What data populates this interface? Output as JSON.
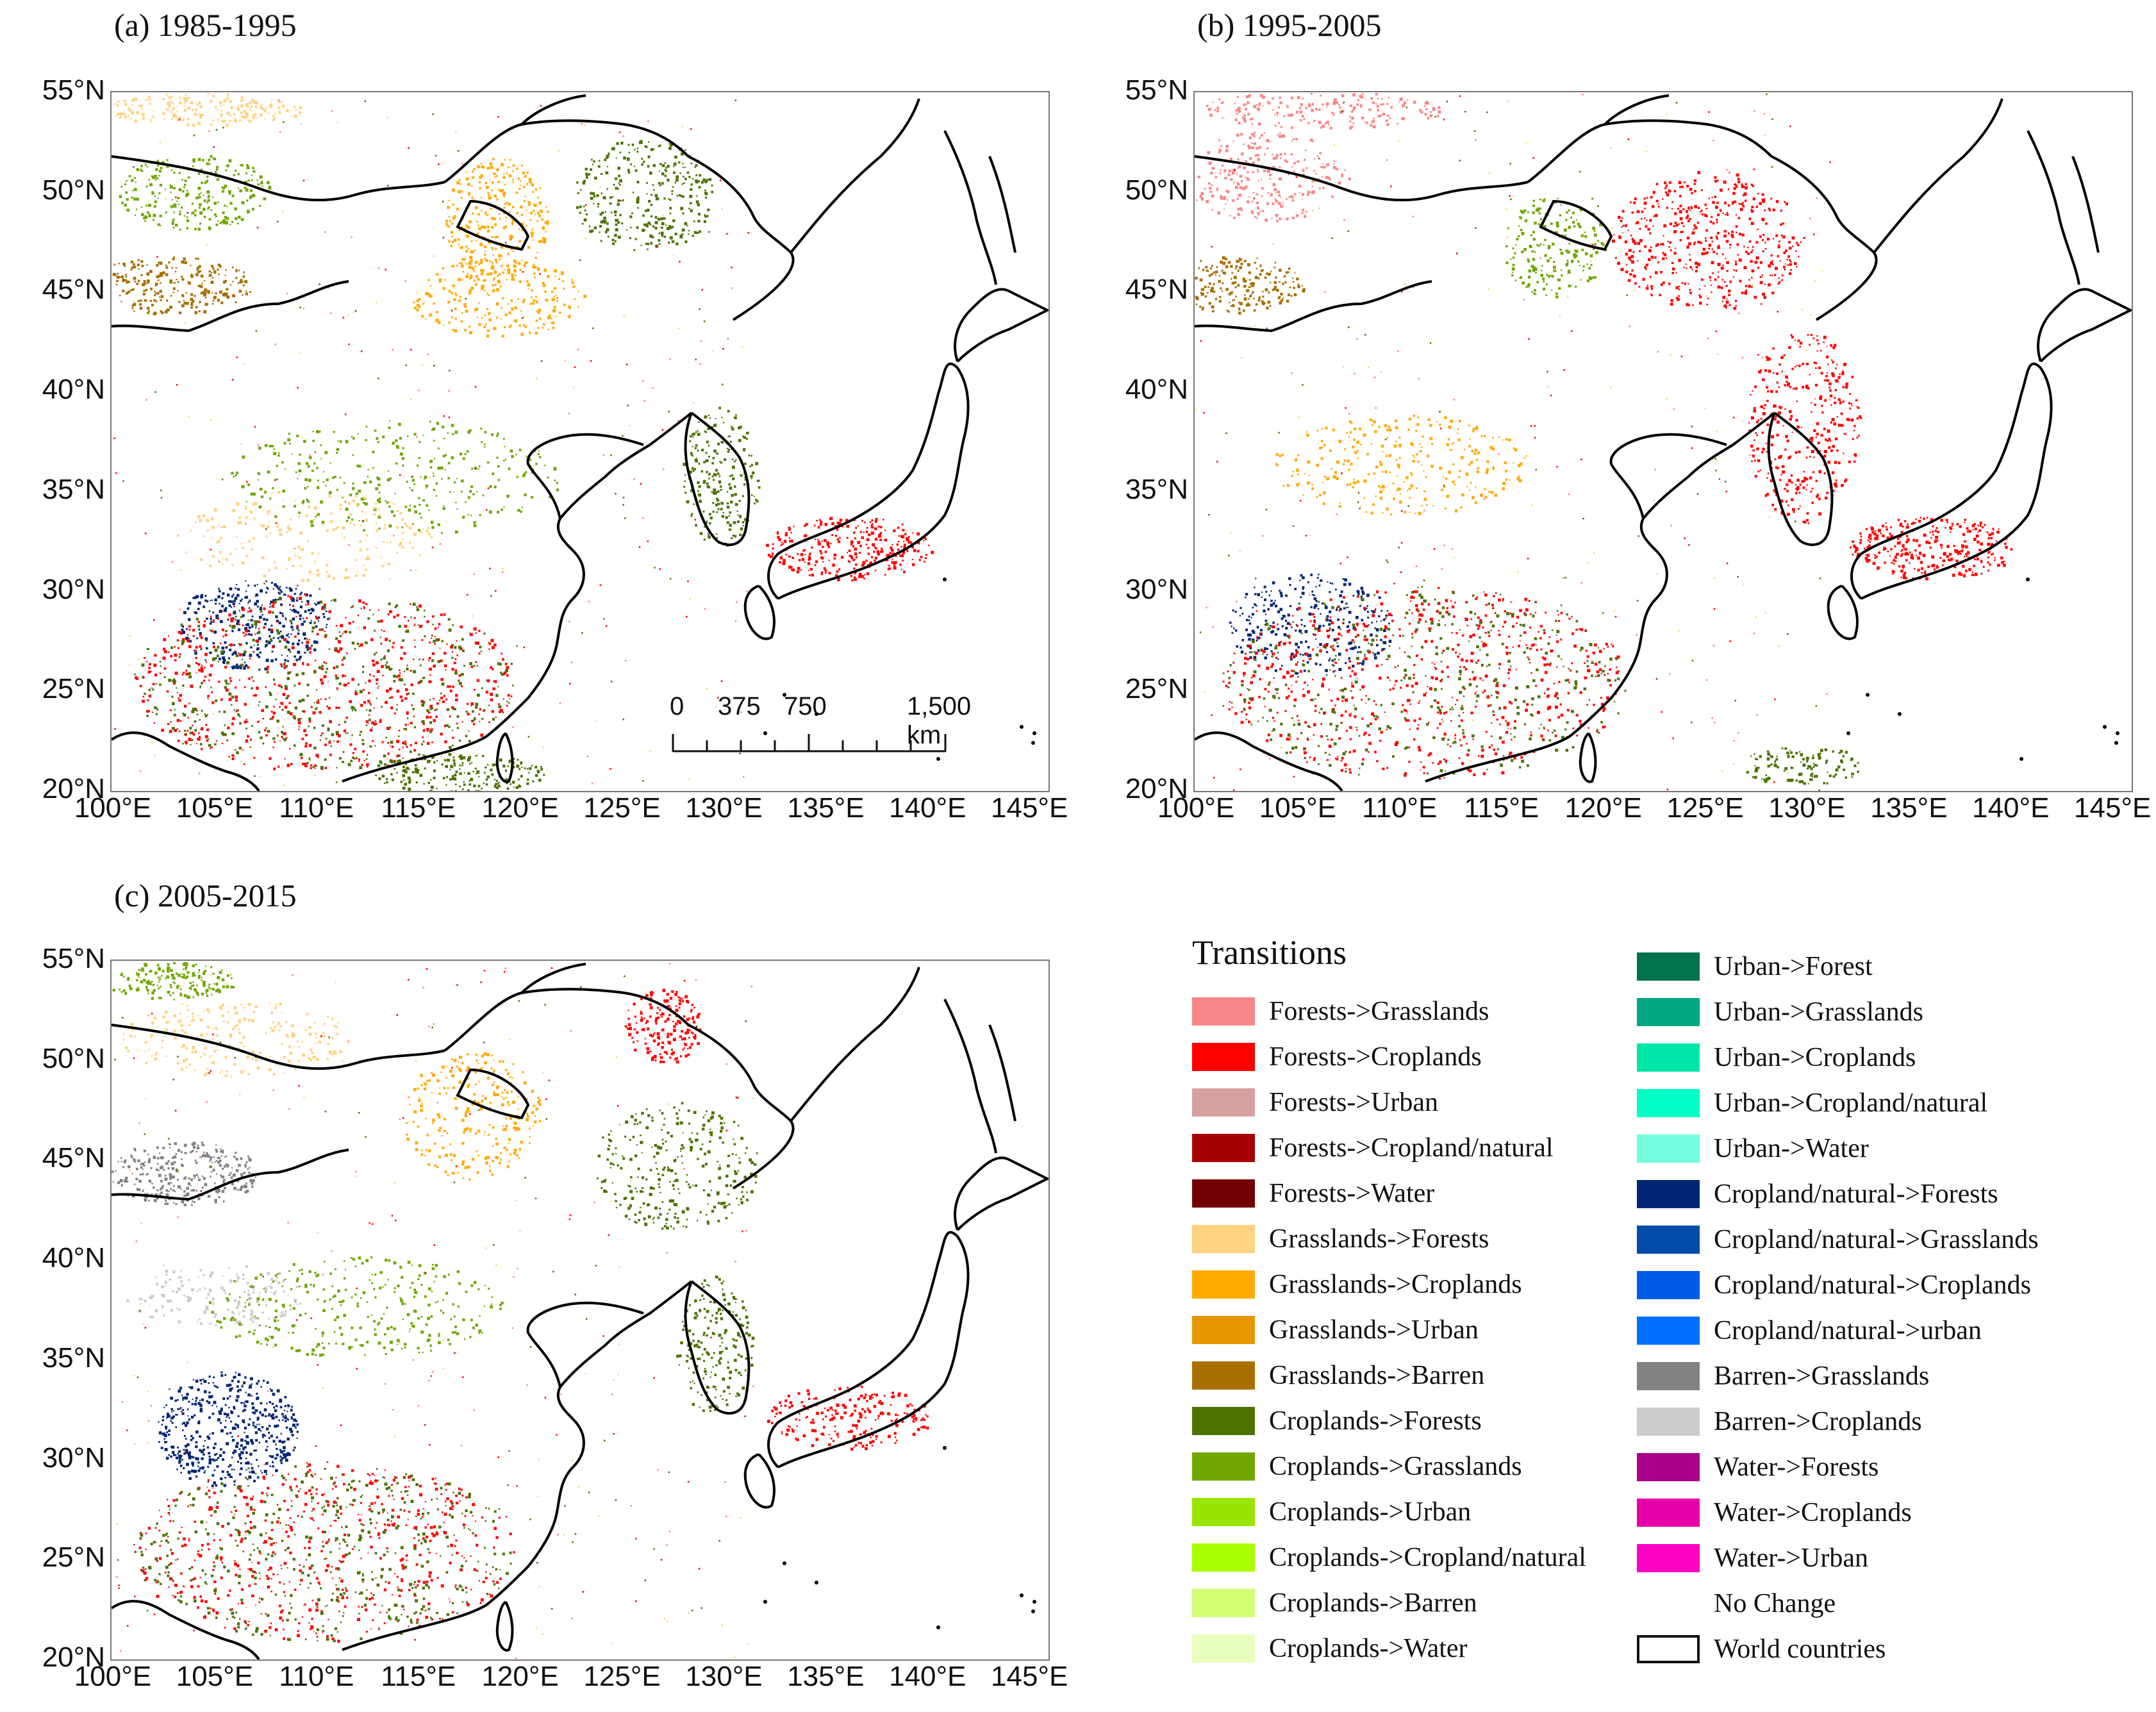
{
  "panels": [
    {
      "id": "a",
      "title": "(a) 1985-1995"
    },
    {
      "id": "b",
      "title": "(b) 1995-2005"
    },
    {
      "id": "c",
      "title": "(c) 2005-2015"
    }
  ],
  "axes": {
    "lat": [
      "55°N",
      "50°N",
      "45°N",
      "40°N",
      "35°N",
      "30°N",
      "25°N",
      "20°N"
    ],
    "lon": [
      "100°E",
      "105°E",
      "110°E",
      "115°E",
      "120°E",
      "125°E",
      "130°E",
      "135°E",
      "140°E",
      "145°E"
    ]
  },
  "scalebar": {
    "ticks": [
      "0",
      "375",
      "750",
      "1,500 km"
    ]
  },
  "legend": {
    "title": "Transitions",
    "col1": [
      {
        "label": "Forests->Grasslands",
        "color": "#f98686"
      },
      {
        "label": "Forests->Croplands",
        "color": "#ff0000"
      },
      {
        "label": "Forests->Urban",
        "color": "#d9a0a0"
      },
      {
        "label": "Forests->Cropland/natural",
        "color": "#a80000"
      },
      {
        "label": "Forests->Water",
        "color": "#730000"
      },
      {
        "label": "Grasslands->Forests",
        "color": "#ffd37f"
      },
      {
        "label": "Grasslands->Croplands",
        "color": "#ffaa00"
      },
      {
        "label": "Grasslands->Urban",
        "color": "#e69800"
      },
      {
        "label": "Grasslands->Barren",
        "color": "#a87000"
      },
      {
        "label": "Croplands->Forests",
        "color": "#4c7300"
      },
      {
        "label": "Croplands->Grasslands",
        "color": "#70a800"
      },
      {
        "label": "Croplands->Urban",
        "color": "#98e600"
      },
      {
        "label": "Croplands->Cropland/natural",
        "color": "#aaff00"
      },
      {
        "label": "Croplands->Barren",
        "color": "#d1ff73"
      },
      {
        "label": "Croplands->Water",
        "color": "#e9ffbe"
      }
    ],
    "col2": [
      {
        "label": "Urban->Forest",
        "color": "#00734c"
      },
      {
        "label": "Urban->Grasslands",
        "color": "#00a884"
      },
      {
        "label": "Urban->Croplands",
        "color": "#00e6a9"
      },
      {
        "label": "Urban->Cropland/natural",
        "color": "#00ffc5"
      },
      {
        "label": "Urban->Water",
        "color": "#73ffdf"
      },
      {
        "label": "Cropland/natural->Forests",
        "color": "#002673"
      },
      {
        "label": "Cropland/natural->Grasslands",
        "color": "#004da8"
      },
      {
        "label": "Cropland/natural->Croplands",
        "color": "#005ce6"
      },
      {
        "label": "Cropland/natural->urban",
        "color": "#0070ff"
      },
      {
        "label": "Barren->Grasslands",
        "color": "#828282"
      },
      {
        "label": "Barren->Croplands",
        "color": "#cccccc"
      },
      {
        "label": "Water->Forests",
        "color": "#a8008a"
      },
      {
        "label": "Water->Croplands",
        "color": "#e600a9"
      },
      {
        "label": "Water->Urban",
        "color": "#ff00c5"
      },
      {
        "label": "No Change",
        "color": "#ffffff"
      },
      {
        "label": "World countries",
        "color": "outline"
      }
    ]
  }
}
